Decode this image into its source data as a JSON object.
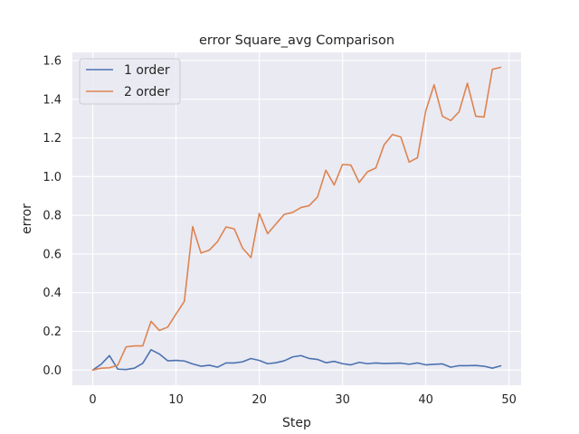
{
  "chart_data": {
    "type": "line",
    "title": "error Square_avg Comparison",
    "xlabel": "Step",
    "ylabel": "error",
    "xlim": [
      -2.45,
      51.45
    ],
    "ylim": [
      -0.078,
      1.642
    ],
    "xticks": [
      0,
      10,
      20,
      30,
      40,
      50
    ],
    "yticks": [
      0.0,
      0.2,
      0.4,
      0.6,
      0.8,
      1.0,
      1.2,
      1.4,
      1.6
    ],
    "xtick_labels": [
      "0",
      "10",
      "20",
      "30",
      "40",
      "50"
    ],
    "ytick_labels": [
      "0.0",
      "0.2",
      "0.4",
      "0.6",
      "0.8",
      "1.0",
      "1.2",
      "1.4",
      "1.6"
    ],
    "grid": true,
    "legend_position": "top-left",
    "x": [
      0,
      1,
      2,
      3,
      4,
      5,
      6,
      7,
      8,
      9,
      10,
      11,
      12,
      13,
      14,
      15,
      16,
      17,
      18,
      19,
      20,
      21,
      22,
      23,
      24,
      25,
      26,
      27,
      28,
      29,
      30,
      31,
      32,
      33,
      34,
      35,
      36,
      37,
      38,
      39,
      40,
      41,
      42,
      43,
      44,
      45,
      46,
      47,
      48,
      49
    ],
    "series": [
      {
        "name": "1 order",
        "color": "#4c72b0",
        "values": [
          0.0,
          0.03,
          0.075,
          0.005,
          0.003,
          0.01,
          0.035,
          0.105,
          0.083,
          0.048,
          0.05,
          0.047,
          0.032,
          0.02,
          0.025,
          0.015,
          0.037,
          0.037,
          0.043,
          0.06,
          0.05,
          0.033,
          0.038,
          0.048,
          0.068,
          0.075,
          0.06,
          0.055,
          0.038,
          0.045,
          0.033,
          0.027,
          0.04,
          0.033,
          0.037,
          0.034,
          0.035,
          0.036,
          0.03,
          0.037,
          0.027,
          0.03,
          0.032,
          0.015,
          0.023,
          0.023,
          0.024,
          0.02,
          0.01,
          0.022
        ]
      },
      {
        "name": "2 order",
        "color": "#dd8452",
        "values": [
          0.0,
          0.01,
          0.012,
          0.025,
          0.12,
          0.125,
          0.125,
          0.252,
          0.205,
          0.222,
          0.29,
          0.355,
          0.742,
          0.605,
          0.62,
          0.665,
          0.74,
          0.73,
          0.63,
          0.582,
          0.81,
          0.705,
          0.755,
          0.805,
          0.815,
          0.84,
          0.85,
          0.895,
          1.033,
          0.957,
          1.063,
          1.06,
          0.97,
          1.025,
          1.045,
          1.165,
          1.218,
          1.205,
          1.075,
          1.098,
          1.34,
          1.475,
          1.312,
          1.29,
          1.335,
          1.483,
          1.312,
          1.308,
          1.555,
          1.565
        ]
      }
    ]
  },
  "style": {
    "plot_background": "#eaeaf2",
    "grid_color": "#ffffff"
  }
}
